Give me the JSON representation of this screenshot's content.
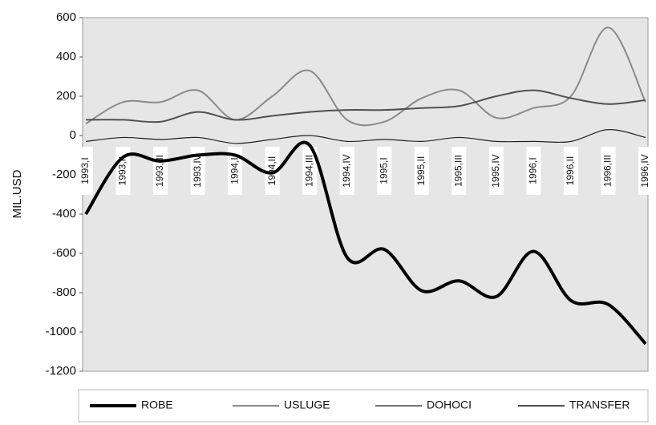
{
  "chart_data": {
    "type": "line",
    "categories": [
      "1993,I",
      "1993,II",
      "1993,III",
      "1993,IV",
      "1994,I",
      "1994,II",
      "1994,III",
      "1994,IV",
      "1995,I",
      "1995,II",
      "1995,III",
      "1995,IV",
      "1996,I",
      "1996,II",
      "1996,III",
      "1996,IV"
    ],
    "ylabel": "MIL.USD",
    "ylim": [
      -1200,
      600
    ],
    "yticks": [
      -1200,
      -1000,
      -800,
      -600,
      -400,
      -200,
      0,
      200,
      400,
      600
    ],
    "grid": false,
    "legend": "bottom",
    "series": [
      {
        "name": "ROBE",
        "color": "#000000",
        "width": 4,
        "values": [
          -400,
          -110,
          -130,
          -100,
          -100,
          -190,
          -50,
          -620,
          -580,
          -790,
          -740,
          -820,
          -590,
          -840,
          -860,
          -1060
        ]
      },
      {
        "name": "USLUGE",
        "color": "#8a8a8a",
        "width": 2,
        "values": [
          60,
          170,
          170,
          230,
          80,
          200,
          330,
          80,
          70,
          190,
          230,
          90,
          140,
          200,
          550,
          170
        ]
      },
      {
        "name": "DOHOCI",
        "color": "#222222",
        "width": 1.2,
        "values": [
          -30,
          -10,
          -20,
          -10,
          -40,
          -20,
          0,
          -30,
          -20,
          -30,
          -10,
          -30,
          -30,
          -30,
          30,
          -10
        ]
      },
      {
        "name": "TRANSFER",
        "color": "#505050",
        "width": 2,
        "values": [
          80,
          80,
          70,
          120,
          80,
          100,
          120,
          130,
          130,
          140,
          150,
          200,
          230,
          190,
          160,
          180
        ]
      }
    ]
  }
}
